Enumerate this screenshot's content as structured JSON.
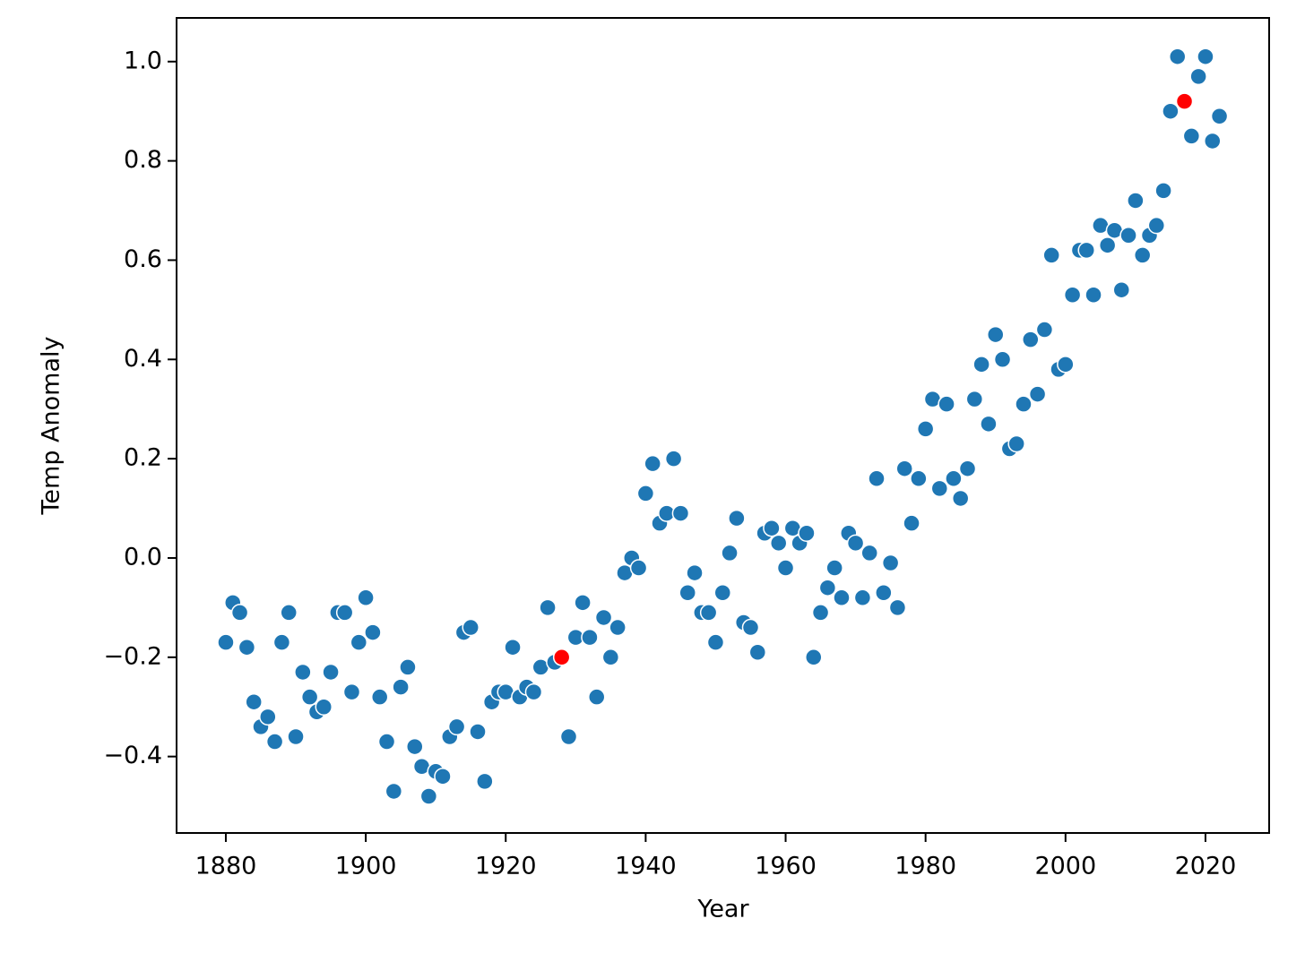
{
  "chart_data": {
    "type": "scatter",
    "x_label": "Year",
    "y_label": "Temp Anomaly",
    "xlim": [
      1872.96,
      2029.1
    ],
    "ylim": [
      -0.554,
      1.088
    ],
    "xticks": [
      1880,
      1900,
      1920,
      1940,
      1960,
      1980,
      2000,
      2020
    ],
    "yticks": [
      {
        "value": -0.4,
        "label": "−0.4"
      },
      {
        "value": -0.2,
        "label": "−0.2"
      },
      {
        "value": 0,
        "label": "0.0"
      },
      0.2,
      0.4,
      0.6,
      0.8,
      {
        "value": 1,
        "label": "1.0"
      }
    ],
    "series": [
      {
        "color": "#1f77b4",
        "x": [
          1880,
          1881,
          1882,
          1883,
          1884,
          1885,
          1886,
          1887,
          1888,
          1889,
          1890,
          1891,
          1892,
          1893,
          1894,
          1895,
          1896,
          1897,
          1898,
          1899,
          1900,
          1901,
          1902,
          1903,
          1904,
          1905,
          1906,
          1907,
          1908,
          1909,
          1910,
          1911,
          1912,
          1913,
          1914,
          1915,
          1916,
          1917,
          1918,
          1919,
          1920,
          1921,
          1922,
          1923,
          1924,
          1925,
          1926,
          1927,
          1928,
          1929,
          1930,
          1931,
          1932,
          1933,
          1934,
          1935,
          1936,
          1937,
          1938,
          1939,
          1940,
          1941,
          1942,
          1943,
          1944,
          1945,
          1946,
          1947,
          1948,
          1949,
          1950,
          1951,
          1952,
          1953,
          1954,
          1955,
          1956,
          1957,
          1958,
          1959,
          1960,
          1961,
          1962,
          1963,
          1964,
          1965,
          1966,
          1967,
          1968,
          1969,
          1970,
          1971,
          1972,
          1973,
          1974,
          1975,
          1976,
          1977,
          1978,
          1979,
          1980,
          1981,
          1982,
          1983,
          1984,
          1985,
          1986,
          1987,
          1988,
          1989,
          1990,
          1991,
          1992,
          1993,
          1994,
          1995,
          1996,
          1997,
          1998,
          1999,
          2000,
          2001,
          2002,
          2003,
          2004,
          2005,
          2006,
          2007,
          2008,
          2009,
          2010,
          2011,
          2012,
          2013,
          2014,
          2015,
          2016,
          2017,
          2018,
          2019,
          2020,
          2021,
          2022
        ],
        "values": [
          -0.17,
          -0.09,
          -0.11,
          -0.18,
          -0.29,
          -0.34,
          -0.32,
          -0.37,
          -0.17,
          -0.11,
          -0.36,
          -0.23,
          -0.28,
          -0.31,
          -0.3,
          -0.23,
          -0.11,
          -0.11,
          -0.27,
          -0.17,
          -0.08,
          -0.15,
          -0.28,
          -0.37,
          -0.47,
          -0.26,
          -0.22,
          -0.38,
          -0.42,
          -0.48,
          -0.43,
          -0.44,
          -0.36,
          -0.34,
          -0.15,
          -0.14,
          -0.35,
          -0.45,
          -0.29,
          -0.27,
          -0.27,
          -0.18,
          -0.28,
          -0.26,
          -0.27,
          -0.22,
          -0.1,
          -0.21,
          -0.2,
          -0.36,
          -0.16,
          -0.09,
          -0.16,
          -0.28,
          -0.12,
          -0.2,
          -0.14,
          -0.03,
          0.0,
          -0.02,
          0.13,
          0.19,
          0.07,
          0.09,
          0.2,
          0.09,
          -0.07,
          -0.03,
          -0.11,
          -0.11,
          -0.17,
          -0.07,
          0.01,
          0.08,
          -0.13,
          -0.14,
          -0.19,
          0.05,
          0.06,
          0.03,
          -0.02,
          0.06,
          0.03,
          0.05,
          -0.2,
          -0.11,
          -0.06,
          -0.02,
          -0.08,
          0.05,
          0.03,
          -0.08,
          0.01,
          0.16,
          -0.07,
          -0.01,
          -0.1,
          0.18,
          0.07,
          0.16,
          0.26,
          0.32,
          0.14,
          0.31,
          0.16,
          0.12,
          0.18,
          0.32,
          0.39,
          0.27,
          0.45,
          0.4,
          0.22,
          0.23,
          0.31,
          0.44,
          0.33,
          0.46,
          0.61,
          0.38,
          0.39,
          0.53,
          0.62,
          0.62,
          0.53,
          0.67,
          0.63,
          0.66,
          0.54,
          0.65,
          0.72,
          0.61,
          0.65,
          0.67,
          0.74,
          0.9,
          1.01,
          0.92,
          0.85,
          0.97,
          1.01,
          0.84,
          0.89
        ]
      },
      {
        "color": "#ff0000",
        "x": [
          1928,
          2017
        ],
        "values": [
          -0.2,
          0.92
        ]
      }
    ]
  }
}
